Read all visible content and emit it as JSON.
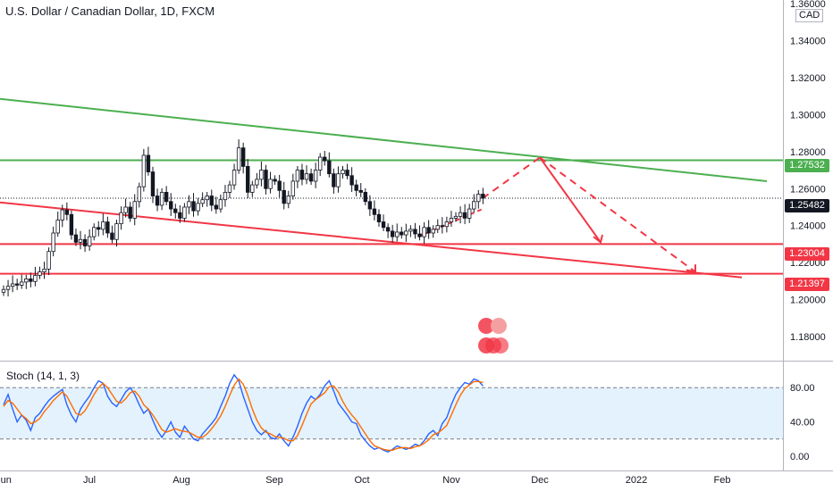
{
  "chart_title": "U.S. Dollar / Canadian Dollar, 1D, FXCM",
  "currency": "CAD",
  "stoch_label": "Stoch (14, 1, 3)",
  "price_badges": [
    "1.27532",
    "1.25482",
    "1.23004",
    "1.21397"
  ],
  "colors": {
    "up": "#ffffff",
    "down": "#131722",
    "green": "#4caf50",
    "red": "#f23645",
    "stoch_k": "#2962ff",
    "stoch_d": "#ff6d00",
    "band": "#e3f2fd"
  },
  "chart_data": [
    {
      "type": "candlestick",
      "title": "U.S. Dollar / Canadian Dollar, 1D, FXCM",
      "x_ticks": [
        "Jun",
        "Jul",
        "Aug",
        "Sep",
        "Oct",
        "Nov",
        "Dec",
        "2022",
        "Feb"
      ],
      "y_ticks": [
        "1.36000",
        "1.34000",
        "1.32000",
        "1.30000",
        "1.28000",
        "1.26000",
        "1.24000",
        "1.22000",
        "1.20000",
        "1.18000"
      ],
      "ylim": [
        1.167,
        1.36
      ],
      "close": [
        1.2055,
        1.2072,
        1.2085,
        1.2078,
        1.2095,
        1.2112,
        1.2098,
        1.2131,
        1.215,
        1.2165,
        1.226,
        1.236,
        1.243,
        1.2485,
        1.246,
        1.235,
        1.231,
        1.2325,
        1.229,
        1.234,
        1.239,
        1.238,
        1.242,
        1.236,
        1.2325,
        1.241,
        1.247,
        1.25,
        1.244,
        1.253,
        1.261,
        1.278,
        1.269,
        1.256,
        1.251,
        1.258,
        1.253,
        1.249,
        1.247,
        1.244,
        1.25,
        1.253,
        1.248,
        1.252,
        1.254,
        1.256,
        1.251,
        1.249,
        1.254,
        1.258,
        1.262,
        1.27,
        1.282,
        1.272,
        1.258,
        1.262,
        1.265,
        1.27,
        1.26,
        1.265,
        1.264,
        1.259,
        1.252,
        1.256,
        1.264,
        1.27,
        1.265,
        1.268,
        1.264,
        1.27,
        1.277,
        1.275,
        1.268,
        1.261,
        1.268,
        1.27,
        1.267,
        1.262,
        1.259,
        1.258,
        1.253,
        1.249,
        1.246,
        1.242,
        1.239,
        1.237,
        1.234,
        1.2365,
        1.235,
        1.237,
        1.238,
        1.2355,
        1.234,
        1.239,
        1.236,
        1.238,
        1.24,
        1.2395,
        1.242,
        1.244,
        1.245,
        1.247,
        1.244,
        1.249,
        1.253,
        1.257,
        1.2548
      ],
      "series": [
        {
          "name": "Stoch K",
          "range": [
            0,
            100
          ],
          "values": [
            60,
            72,
            55,
            40,
            48,
            42,
            30,
            45,
            50,
            58,
            65,
            70,
            74,
            78,
            60,
            48,
            40,
            55,
            63,
            70,
            80,
            88,
            85,
            70,
            62,
            58,
            66,
            75,
            80,
            72,
            60,
            50,
            55,
            42,
            30,
            22,
            30,
            40,
            28,
            22,
            35,
            28,
            20,
            18,
            26,
            32,
            38,
            45,
            58,
            70,
            85,
            95,
            88,
            70,
            55,
            40,
            30,
            25,
            30,
            22,
            20,
            26,
            18,
            12,
            22,
            35,
            50,
            62,
            70,
            66,
            72,
            82,
            88,
            76,
            62,
            55,
            48,
            40,
            38,
            25,
            18,
            12,
            8,
            10,
            7,
            5,
            8,
            12,
            10,
            8,
            10,
            14,
            12,
            18,
            26,
            30,
            24,
            38,
            45,
            60,
            72,
            80,
            86,
            84,
            90,
            88,
            82
          ]
        },
        {
          "name": "Stoch D",
          "range": [
            0,
            100
          ],
          "values": [
            58,
            65,
            62,
            55,
            48,
            44,
            38,
            40,
            44,
            52,
            58,
            65,
            70,
            75,
            70,
            60,
            50,
            48,
            53,
            62,
            72,
            80,
            85,
            80,
            72,
            64,
            62,
            67,
            74,
            76,
            70,
            60,
            55,
            48,
            40,
            31,
            28,
            30,
            32,
            30,
            29,
            28,
            25,
            22,
            22,
            26,
            32,
            39,
            47,
            58,
            71,
            83,
            90,
            84,
            71,
            55,
            42,
            33,
            28,
            26,
            23,
            22,
            21,
            18,
            18,
            24,
            36,
            49,
            61,
            66,
            70,
            74,
            81,
            82,
            75,
            64,
            55,
            48,
            42,
            34,
            26,
            18,
            12,
            10,
            8,
            7,
            7,
            9,
            10,
            10,
            9,
            11,
            12,
            15,
            19,
            25,
            27,
            31,
            36,
            48,
            60,
            71,
            79,
            83,
            87,
            87,
            86
          ]
        }
      ]
    }
  ]
}
